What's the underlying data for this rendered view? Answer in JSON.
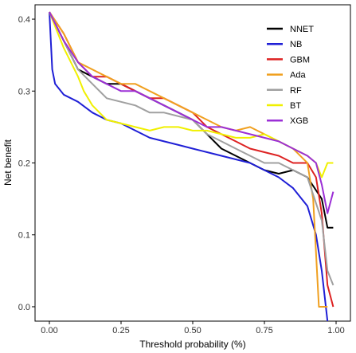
{
  "chart_data": {
    "type": "line",
    "xlabel": "Threshold probability (%)",
    "ylabel": "Net benefit",
    "xlim": [
      -0.05,
      1.05
    ],
    "ylim": [
      -0.02,
      0.42
    ],
    "x_ticks": [
      0.0,
      0.25,
      0.5,
      0.75,
      1.0
    ],
    "x_tick_labels": [
      "0.00",
      "0.25",
      "0.50",
      "0.75",
      "1.00"
    ],
    "y_ticks": [
      0.0,
      0.1,
      0.2,
      0.3,
      0.4
    ],
    "y_tick_labels": [
      "0.0",
      "0.1",
      "0.2",
      "0.3",
      "0.4"
    ],
    "grid": false,
    "legend_position": "top-right",
    "series": [
      {
        "name": "NNET",
        "color": "#000000",
        "x": [
          0,
          0.05,
          0.1,
          0.15,
          0.2,
          0.25,
          0.3,
          0.35,
          0.4,
          0.45,
          0.5,
          0.55,
          0.6,
          0.65,
          0.7,
          0.75,
          0.8,
          0.85,
          0.9,
          0.95,
          0.97,
          0.99
        ],
        "y": [
          0.41,
          0.37,
          0.33,
          0.32,
          0.31,
          0.31,
          0.3,
          0.29,
          0.28,
          0.27,
          0.26,
          0.24,
          0.22,
          0.21,
          0.2,
          0.19,
          0.185,
          0.19,
          0.18,
          0.15,
          0.11,
          0.11
        ]
      },
      {
        "name": "NB",
        "color": "#1f1fd6",
        "x": [
          0,
          0.01,
          0.02,
          0.05,
          0.1,
          0.15,
          0.2,
          0.25,
          0.3,
          0.35,
          0.4,
          0.45,
          0.5,
          0.55,
          0.6,
          0.65,
          0.7,
          0.75,
          0.8,
          0.85,
          0.9,
          0.93,
          0.95,
          0.97
        ],
        "y": [
          0.41,
          0.33,
          0.31,
          0.295,
          0.285,
          0.27,
          0.26,
          0.255,
          0.245,
          0.235,
          0.23,
          0.225,
          0.22,
          0.215,
          0.21,
          0.205,
          0.2,
          0.19,
          0.18,
          0.165,
          0.14,
          0.1,
          0.05,
          -0.02
        ]
      },
      {
        "name": "GBM",
        "color": "#dd2222",
        "x": [
          0,
          0.05,
          0.1,
          0.15,
          0.2,
          0.25,
          0.3,
          0.35,
          0.4,
          0.45,
          0.5,
          0.55,
          0.6,
          0.65,
          0.7,
          0.75,
          0.8,
          0.85,
          0.9,
          0.93,
          0.95,
          0.97,
          0.99
        ],
        "y": [
          0.41,
          0.38,
          0.34,
          0.32,
          0.32,
          0.31,
          0.3,
          0.29,
          0.29,
          0.28,
          0.27,
          0.25,
          0.24,
          0.23,
          0.22,
          0.215,
          0.21,
          0.2,
          0.2,
          0.18,
          0.13,
          0.03,
          0.0
        ]
      },
      {
        "name": "Ada",
        "color": "#f0a020",
        "x": [
          0,
          0.05,
          0.1,
          0.15,
          0.2,
          0.25,
          0.3,
          0.35,
          0.4,
          0.45,
          0.5,
          0.55,
          0.6,
          0.65,
          0.7,
          0.75,
          0.8,
          0.85,
          0.9,
          0.92,
          0.94,
          0.95,
          0.97
        ],
        "y": [
          0.41,
          0.38,
          0.34,
          0.33,
          0.32,
          0.31,
          0.31,
          0.3,
          0.29,
          0.28,
          0.27,
          0.26,
          0.25,
          0.245,
          0.25,
          0.24,
          0.23,
          0.22,
          0.2,
          0.15,
          0.0,
          0.0,
          0.0
        ]
      },
      {
        "name": "RF",
        "color": "#a0a0a0",
        "x": [
          0,
          0.05,
          0.1,
          0.15,
          0.2,
          0.25,
          0.3,
          0.35,
          0.4,
          0.45,
          0.5,
          0.55,
          0.6,
          0.65,
          0.7,
          0.75,
          0.8,
          0.85,
          0.9,
          0.95,
          0.97,
          0.99
        ],
        "y": [
          0.41,
          0.37,
          0.33,
          0.31,
          0.29,
          0.285,
          0.28,
          0.27,
          0.27,
          0.265,
          0.26,
          0.24,
          0.23,
          0.22,
          0.21,
          0.2,
          0.2,
          0.19,
          0.18,
          0.12,
          0.05,
          0.03
        ]
      },
      {
        "name": "BT",
        "color": "#f0f000",
        "x": [
          0,
          0.05,
          0.1,
          0.12,
          0.15,
          0.2,
          0.25,
          0.3,
          0.35,
          0.4,
          0.45,
          0.5,
          0.55,
          0.6,
          0.65,
          0.7,
          0.75,
          0.8,
          0.85,
          0.9,
          0.93,
          0.95,
          0.97,
          0.99
        ],
        "y": [
          0.41,
          0.36,
          0.32,
          0.3,
          0.28,
          0.26,
          0.255,
          0.25,
          0.245,
          0.25,
          0.25,
          0.245,
          0.245,
          0.24,
          0.235,
          0.235,
          0.24,
          0.23,
          0.22,
          0.21,
          0.2,
          0.18,
          0.2,
          0.2
        ]
      },
      {
        "name": "XGB",
        "color": "#9b2fd6",
        "x": [
          0,
          0.05,
          0.1,
          0.15,
          0.2,
          0.25,
          0.3,
          0.35,
          0.4,
          0.45,
          0.5,
          0.55,
          0.6,
          0.65,
          0.7,
          0.75,
          0.8,
          0.85,
          0.9,
          0.93,
          0.95,
          0.97,
          0.99
        ],
        "y": [
          0.41,
          0.37,
          0.34,
          0.32,
          0.31,
          0.3,
          0.3,
          0.29,
          0.28,
          0.27,
          0.26,
          0.25,
          0.25,
          0.245,
          0.24,
          0.235,
          0.23,
          0.22,
          0.21,
          0.2,
          0.17,
          0.13,
          0.16
        ]
      }
    ]
  }
}
